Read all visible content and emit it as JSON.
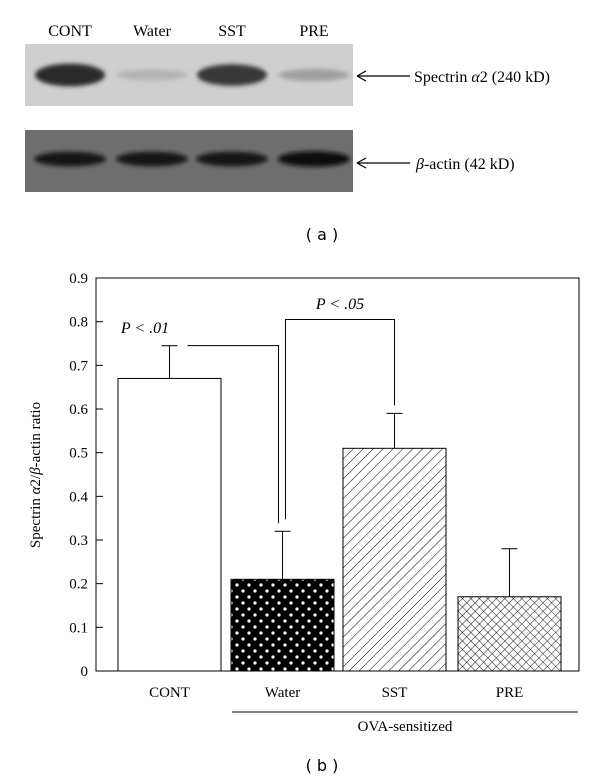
{
  "blot": {
    "lanes": [
      "CONT",
      "Water",
      "SST",
      "PRE"
    ],
    "band_labels": [
      {
        "prefix": "Spectrin ",
        "greek": "α",
        "suffix": "2 (240 kD)"
      },
      {
        "prefix": "",
        "greek": "β",
        "suffix": "-actin (42 kD)"
      }
    ],
    "spectrin_intensity": [
      0.92,
      0.18,
      0.85,
      0.28
    ],
    "actin_intensity": [
      0.85,
      0.85,
      0.85,
      0.95
    ],
    "panel_label": "( a )"
  },
  "chart_data": {
    "type": "bar",
    "categories": [
      "CONT",
      "Water",
      "SST",
      "PRE"
    ],
    "values": [
      0.67,
      0.21,
      0.51,
      0.17
    ],
    "errors": [
      0.075,
      0.11,
      0.08,
      0.11
    ],
    "ylabel_parts": [
      "Spectrin ",
      "α",
      "2/",
      "β",
      "-actin ratio"
    ],
    "ylim": [
      0,
      0.9
    ],
    "yticks": [
      "0",
      "0.1",
      "0.2",
      "0.3",
      "0.4",
      "0.5",
      "0.6",
      "0.7",
      "0.8",
      "0.9"
    ],
    "patterns": [
      "none",
      "dots",
      "diagonal",
      "crosshatch"
    ],
    "group_label": "OVA-sensitized",
    "annotations": [
      {
        "text": "P < .01",
        "from": 0,
        "to": 1
      },
      {
        "text": "P < .05",
        "from": 1,
        "to": 2
      }
    ],
    "panel_label": "( b )"
  }
}
